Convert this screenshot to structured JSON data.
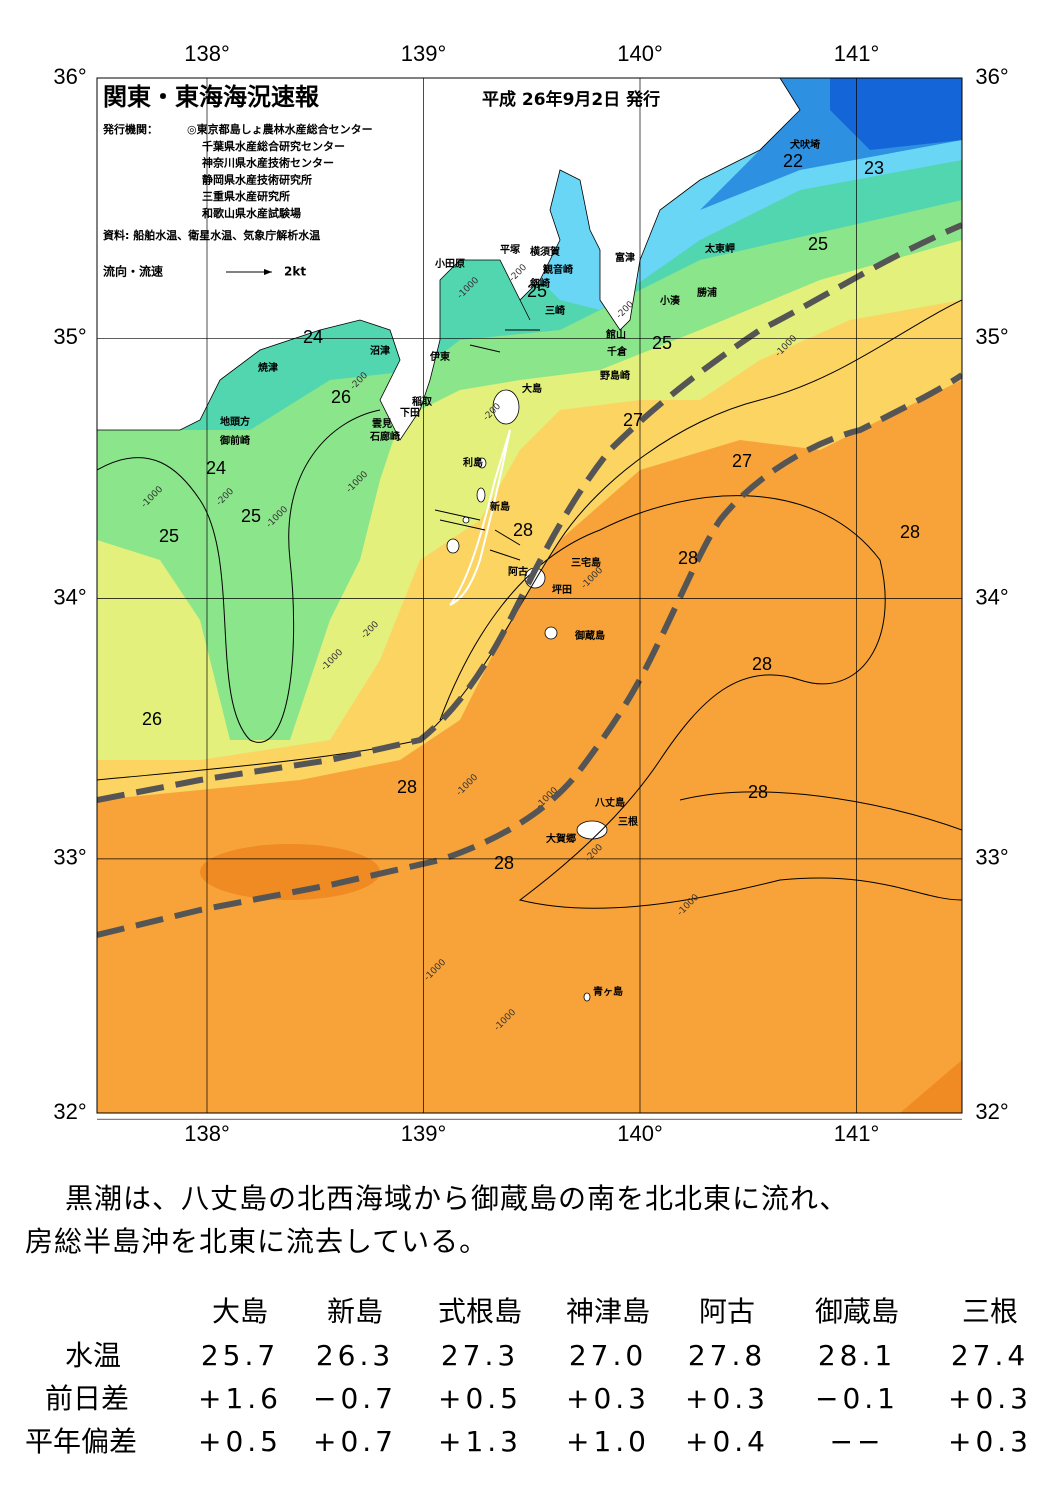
{
  "map": {
    "title": "関東・東海海況速報",
    "date": "平成 26年9月2日 発行",
    "issuer_label": "発行機関：",
    "issuers": [
      "◎東京都島しょ農林水産総合センター",
      "千葉県水産総合研究センター",
      "神奈川県水産技術センター",
      "静岡県水産技術研究所",
      "三重県水産研究所",
      "和歌山県水産試験場"
    ],
    "source": "資料: 船舶水温、衛星水温、気象庁解析水温",
    "legend": {
      "label": "流向・流速",
      "scale": "2kt"
    },
    "lon_ticks": [
      {
        "value": 138,
        "label": "138°"
      },
      {
        "value": 139,
        "label": "139°"
      },
      {
        "value": 140,
        "label": "140°"
      },
      {
        "value": 141,
        "label": "141°"
      }
    ],
    "lat_ticks": [
      {
        "value": 32,
        "label": "32°"
      },
      {
        "value": 33,
        "label": "33°"
      },
      {
        "value": 34,
        "label": "34°"
      },
      {
        "value": 35,
        "label": "35°"
      },
      {
        "value": 36,
        "label": "36°"
      }
    ],
    "places": [
      "犬吠埼",
      "太東岬",
      "勝浦",
      "小湊",
      "富津",
      "横須賀",
      "観音崎",
      "平塚",
      "小田原",
      "剱崎",
      "三崎",
      "館山",
      "千倉",
      "野島崎",
      "大島",
      "沼津",
      "伊東",
      "焼津",
      "稲取",
      "下田",
      "雲見",
      "石廊崎",
      "地頭方",
      "御前崎",
      "利島",
      "新島",
      "三宅島",
      "阿古",
      "坪田",
      "御蔵島",
      "八丈島",
      "三根",
      "大賀郷",
      "青ヶ島"
    ],
    "isotherm_labels": [
      "22",
      "23",
      "25",
      "25",
      "24",
      "25",
      "26",
      "27",
      "27",
      "24",
      "25",
      "25",
      "28",
      "28",
      "28",
      "28",
      "26",
      "28",
      "28",
      "28"
    ],
    "depth_labels": [
      "-200",
      "-1000",
      "-200",
      "-1000",
      "-200",
      "-200",
      "-1000",
      "-1000",
      "-200",
      "-1000",
      "-1000",
      "-200",
      "-1000",
      "-1000",
      "-1000",
      "-200",
      "-1000",
      "-1000",
      "-1000"
    ]
  },
  "text": [
    "黒潮は、八丈島の北西海域から御蔵島の南を北北東に流れ、",
    "房総半島沖を北東に流去している。"
  ],
  "table": {
    "columns": [
      "大島",
      "新島",
      "式根島",
      "神津島",
      "阿古",
      "御蔵島",
      "三根"
    ],
    "rows": [
      {
        "label": "水温",
        "values": [
          "25.7",
          "26.3",
          "27.3",
          "27.0",
          "27.8",
          "28.1",
          "27.4"
        ]
      },
      {
        "label": "前日差",
        "values": [
          "+1.6",
          "−0.7",
          "+0.5",
          "+0.3",
          "+0.3",
          "−0.1",
          "+0.3"
        ]
      },
      {
        "label": "平年偏差",
        "values": [
          "+0.5",
          "+0.7",
          "+1.3",
          "+1.0",
          "+0.4",
          "−−",
          "+0.3"
        ]
      }
    ]
  }
}
